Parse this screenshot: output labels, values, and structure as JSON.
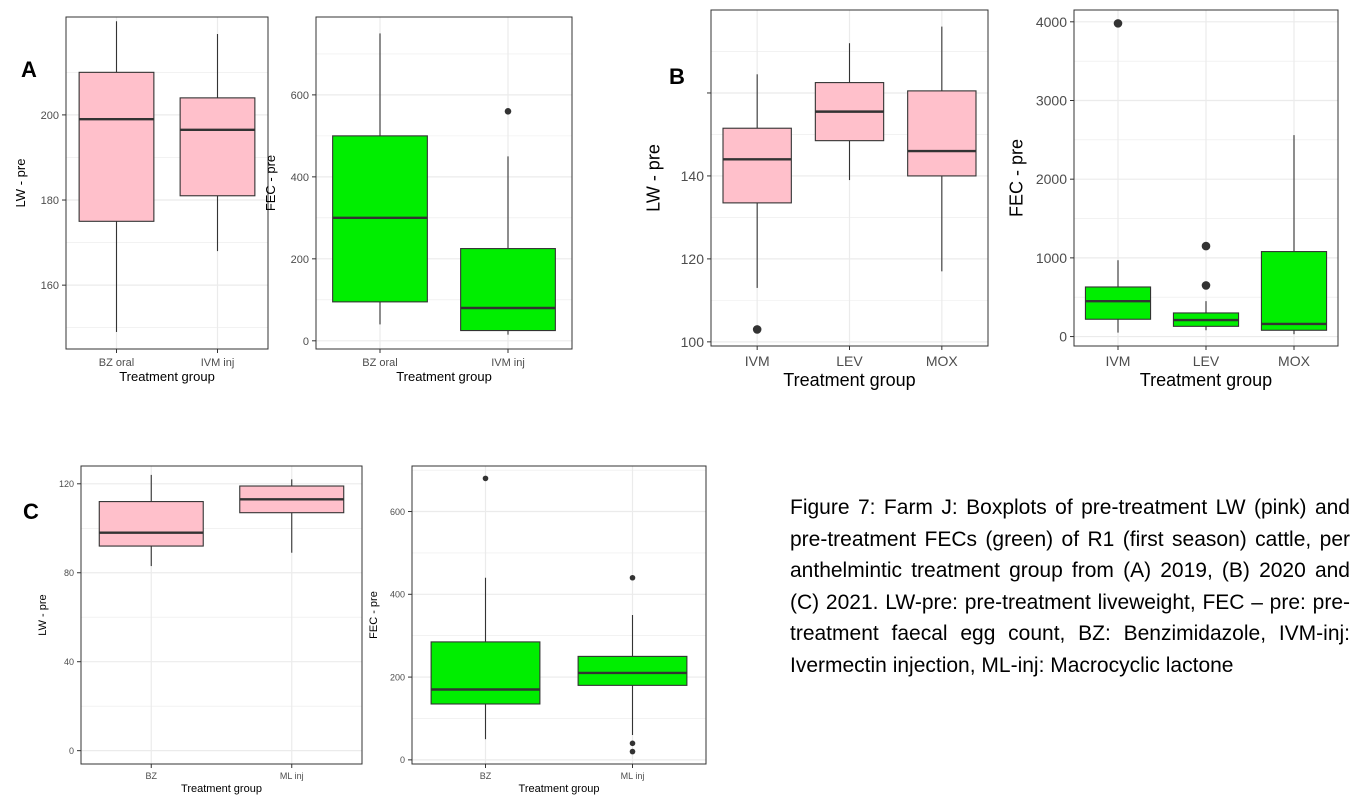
{
  "panel_labels": {
    "a": "A",
    "b": "B",
    "c": "C"
  },
  "caption": "Figure 7: Farm J: Boxplots of pre-treatment LW (pink) and pre-treatment FECs (green) of R1 (first season) cattle, per anthelmintic treatment group from (A) 2019, (B) 2020 and (C) 2021. LW-pre: pre-treatment liveweight, FEC – pre: pre-treatment faecal egg count, BZ: Benzimidazole, IVM-inj: Ivermectin injection, ML-inj: Macrocyclic lactone",
  "colors": {
    "pink": "#FFC0CB",
    "green": "#00EE00",
    "grid": "#EBEBEB",
    "axis_text": "#4D4D4D"
  },
  "chart_data": [
    {
      "type": "box",
      "panel": "A",
      "xlabel": "Treatment group",
      "ylabel": "LW - pre",
      "ylim": [
        145,
        223
      ],
      "yticks": [
        160,
        180,
        200
      ],
      "yticklabels": [
        "160",
        "180",
        "200"
      ],
      "categories": [
        "BZ oral",
        "IVM inj"
      ],
      "fill": "#FFC0CB",
      "boxes": [
        {
          "min": 149,
          "q1": 175,
          "median": 199,
          "q3": 210,
          "max": 222,
          "outliers": []
        },
        {
          "min": 168,
          "q1": 181,
          "median": 196.5,
          "q3": 204,
          "max": 219,
          "outliers": []
        }
      ]
    },
    {
      "type": "box",
      "panel": "A",
      "xlabel": "Treatment group",
      "ylabel": "FEC - pre",
      "ylim": [
        -20,
        790
      ],
      "yticks": [
        0,
        200,
        400,
        600
      ],
      "yticklabels": [
        "0",
        "200",
        "400",
        "600"
      ],
      "categories": [
        "BZ oral",
        "IVM inj"
      ],
      "fill": "#00EE00",
      "boxes": [
        {
          "min": 40,
          "q1": 95,
          "median": 300,
          "q3": 500,
          "max": 750,
          "outliers": []
        },
        {
          "min": 15,
          "q1": 25,
          "median": 80,
          "q3": 225,
          "max": 450,
          "outliers": [
            560
          ]
        }
      ]
    },
    {
      "type": "box",
      "panel": "B",
      "xlabel": "Treatment group",
      "ylabel": "LW - pre",
      "ylim": [
        99,
        180
      ],
      "yticks": [
        100,
        120,
        140,
        160
      ],
      "yticklabels": [
        "100",
        "120",
        "140",
        ""
      ],
      "categories": [
        "IVM",
        "LEV",
        "MOX"
      ],
      "fill": "#FFC0CB",
      "boxes": [
        {
          "min": 113,
          "q1": 133.5,
          "median": 144,
          "q3": 151.5,
          "max": 164.5,
          "outliers": [
            103
          ]
        },
        {
          "min": 139,
          "q1": 148.5,
          "median": 155.5,
          "q3": 162.5,
          "max": 172,
          "outliers": []
        },
        {
          "min": 117,
          "q1": 140,
          "median": 146,
          "q3": 160.5,
          "max": 176,
          "outliers": []
        }
      ]
    },
    {
      "type": "box",
      "panel": "B",
      "xlabel": "Treatment group",
      "ylabel": "FEC - pre",
      "ylim": [
        -120,
        4150
      ],
      "yticks": [
        0,
        1000,
        2000,
        3000,
        4000
      ],
      "yticklabels": [
        "0",
        "1000",
        "2000",
        "3000",
        "4000"
      ],
      "categories": [
        "IVM",
        "LEV",
        "MOX"
      ],
      "fill": "#00EE00",
      "boxes": [
        {
          "min": 50,
          "q1": 220,
          "median": 450,
          "q3": 630,
          "max": 970,
          "outliers": [
            3980
          ]
        },
        {
          "min": 80,
          "q1": 130,
          "median": 210,
          "q3": 300,
          "max": 450,
          "outliers": [
            650,
            1150
          ]
        },
        {
          "min": 30,
          "q1": 80,
          "median": 160,
          "q3": 1080,
          "max": 2560,
          "outliers": []
        }
      ]
    },
    {
      "type": "box",
      "panel": "C",
      "xlabel": "Treatment group",
      "ylabel": "LW - pre",
      "ylim": [
        -6,
        128
      ],
      "yticks": [
        0,
        40,
        80,
        120
      ],
      "yticklabels": [
        "0",
        "40",
        "80",
        "120"
      ],
      "categories": [
        "BZ",
        "ML inj"
      ],
      "fill": "#FFC0CB",
      "boxes": [
        {
          "min": 83,
          "q1": 92,
          "median": 98,
          "q3": 112,
          "max": 124,
          "outliers": []
        },
        {
          "min": 89,
          "q1": 107,
          "median": 113,
          "q3": 119,
          "max": 122,
          "outliers": []
        }
      ]
    },
    {
      "type": "box",
      "panel": "C",
      "xlabel": "Treatment group",
      "ylabel": "FEC - pre",
      "ylim": [
        -10,
        710
      ],
      "yticks": [
        0,
        200,
        400,
        600
      ],
      "yticklabels": [
        "0",
        "200",
        "400",
        "600"
      ],
      "categories": [
        "BZ",
        "ML inj"
      ],
      "fill": "#00EE00",
      "boxes": [
        {
          "min": 50,
          "q1": 135,
          "median": 170,
          "q3": 285,
          "max": 440,
          "outliers": [
            680
          ]
        },
        {
          "min": 60,
          "q1": 180,
          "median": 210,
          "q3": 250,
          "max": 350,
          "outliers": [
            20,
            40,
            440
          ]
        }
      ]
    }
  ]
}
